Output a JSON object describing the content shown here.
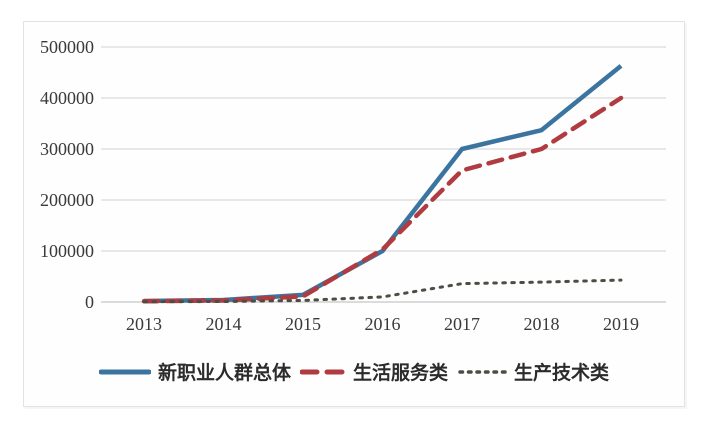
{
  "chart_data": {
    "type": "line",
    "title": "",
    "xlabel": "",
    "ylabel": "",
    "categories": [
      "2013",
      "2014",
      "2015",
      "2016",
      "2017",
      "2018",
      "2019"
    ],
    "series": [
      {
        "name": "新职业人群总体",
        "line_style": "solid",
        "color": "#3C74A0",
        "values": [
          2000,
          4000,
          14000,
          100000,
          300000,
          337000,
          463000
        ]
      },
      {
        "name": "生活服务类",
        "line_style": "dashed",
        "color": "#B03B40",
        "values": [
          1500,
          3000,
          11000,
          103000,
          258000,
          300000,
          400000
        ]
      },
      {
        "name": "生产技术类",
        "line_style": "dotted",
        "color": "#4D4D45",
        "values": [
          500,
          1000,
          3000,
          10000,
          36000,
          39000,
          43000
        ]
      }
    ],
    "ylim": [
      0,
      500000
    ],
    "yticks": [
      0,
      100000,
      200000,
      300000,
      400000,
      500000
    ],
    "grid": "horizontal",
    "legend_position": "bottom",
    "grid_color": "#dcdcdc",
    "axis_color": "#c6c6c6",
    "tick_label_color": "#3a3a3a",
    "background_color": "#fefefe"
  }
}
